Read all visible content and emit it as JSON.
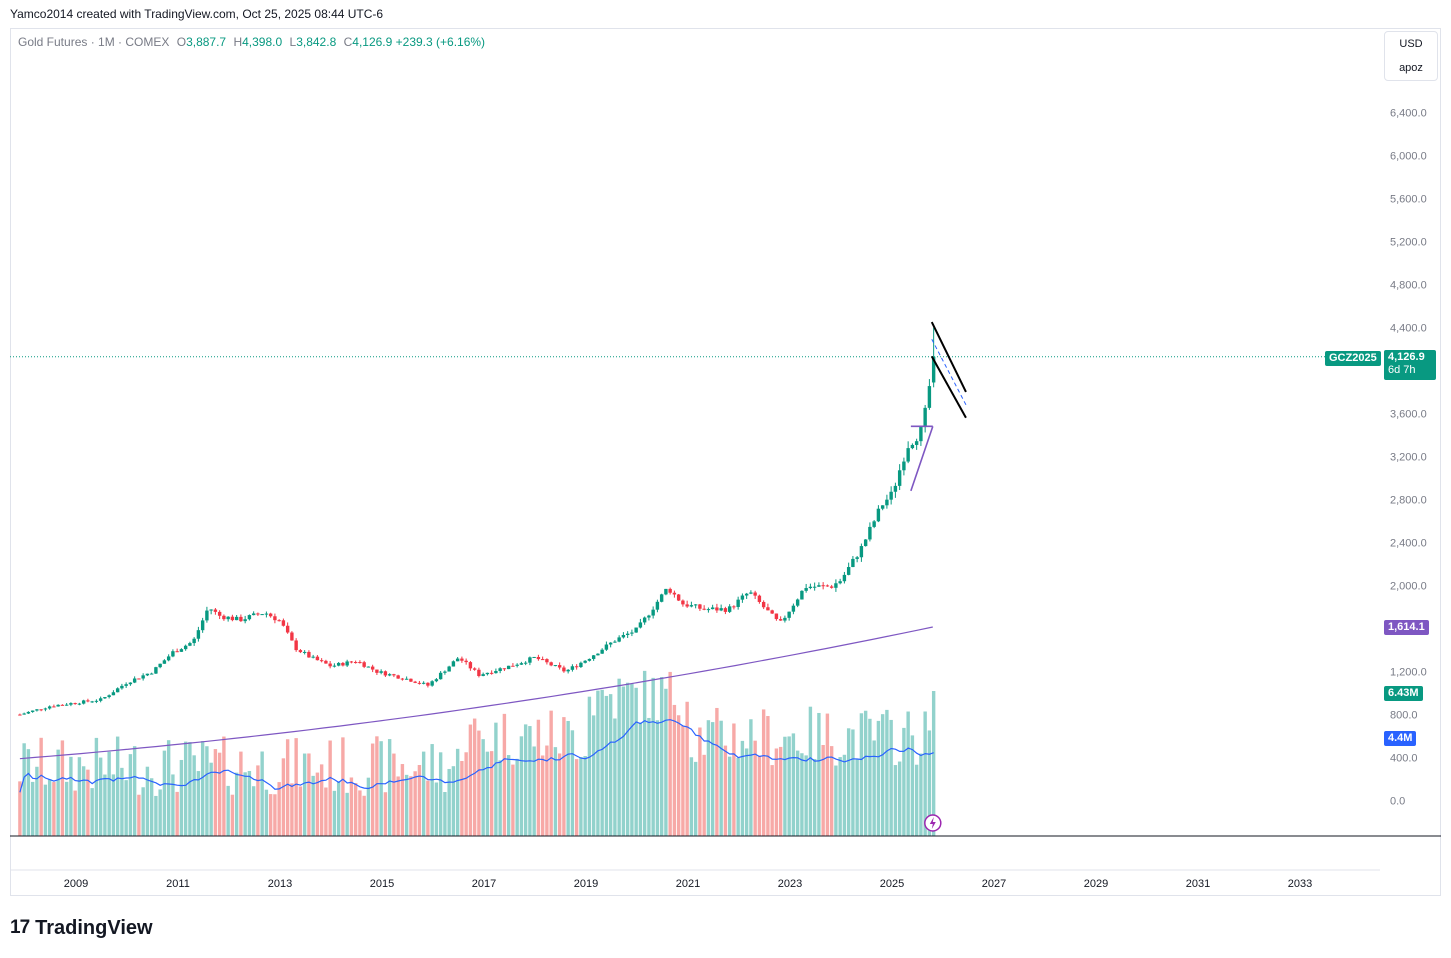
{
  "header": {
    "text": "Yamco2014 created with TradingView.com, Oct 25, 2025 08:44 UTC-6"
  },
  "legend": {
    "symbol": "Gold Futures · 1M · COMEX",
    "o_label": "O",
    "o": "3,887.7",
    "h_label": "H",
    "h": "4,398.0",
    "l_label": "L",
    "l": "3,842.8",
    "c_label": "C",
    "c": "4,126.9",
    "change": "+239.3 (+6.16%)"
  },
  "axis_toggle": {
    "currency": "USD",
    "mode": "apoz"
  },
  "badges": {
    "ticker": "GCZ2025",
    "price": "4,126.9",
    "countdown": "6d 7h",
    "ma": "1,614.1",
    "volume": "6.43M",
    "volume_ma": "4.4M"
  },
  "colors": {
    "up": "#089981",
    "down": "#f23645",
    "vol_up": "#92d2cc",
    "vol_down": "#f7a9a7",
    "ma": "#7e57c2",
    "vol_ma": "#2962ff"
  },
  "footer": {
    "logo_text": "TradingView"
  },
  "chart_data": {
    "type": "candlestick",
    "title": "Gold Futures · 1M · COMEX",
    "y_ticks": [
      "6,400.0",
      "6,000.0",
      "5,600.0",
      "5,200.0",
      "4,800.0",
      "4,400.0",
      "3,600.0",
      "3,200.0",
      "2,800.0",
      "2,400.0",
      "2,000.0",
      "1,200.0",
      "800.0",
      "400.0",
      "0.0"
    ],
    "y_tick_values": [
      6400,
      6000,
      5600,
      5200,
      4800,
      4400,
      3600,
      3200,
      2800,
      2400,
      2000,
      1200,
      800,
      400,
      0
    ],
    "x_ticks": [
      "2009",
      "2011",
      "2013",
      "2015",
      "2017",
      "2019",
      "2021",
      "2023",
      "2025",
      "2027",
      "2029",
      "2031",
      "2033"
    ],
    "x_tick_years": [
      2009,
      2011,
      2013,
      2015,
      2017,
      2019,
      2021,
      2023,
      2025,
      2027,
      2029,
      2031,
      2033
    ],
    "price_path": [
      [
        2007.9,
        800
      ],
      [
        2008.5,
        880
      ],
      [
        2009.0,
        910
      ],
      [
        2009.5,
        940
      ],
      [
        2010.0,
        1100
      ],
      [
        2010.5,
        1200
      ],
      [
        2010.9,
        1380
      ],
      [
        2011.3,
        1480
      ],
      [
        2011.6,
        1800
      ],
      [
        2011.8,
        1720
      ],
      [
        2012.2,
        1680
      ],
      [
        2012.7,
        1750
      ],
      [
        2013.0,
        1670
      ],
      [
        2013.3,
        1420
      ],
      [
        2013.6,
        1330
      ],
      [
        2014.0,
        1250
      ],
      [
        2014.5,
        1300
      ],
      [
        2014.9,
        1200
      ],
      [
        2015.5,
        1130
      ],
      [
        2015.9,
        1070
      ],
      [
        2016.5,
        1330
      ],
      [
        2016.9,
        1170
      ],
      [
        2017.5,
        1250
      ],
      [
        2018.0,
        1330
      ],
      [
        2018.6,
        1200
      ],
      [
        2019.0,
        1310
      ],
      [
        2019.6,
        1500
      ],
      [
        2020.0,
        1590
      ],
      [
        2020.6,
        1980
      ],
      [
        2020.9,
        1830
      ],
      [
        2021.3,
        1780
      ],
      [
        2021.8,
        1780
      ],
      [
        2022.2,
        1940
      ],
      [
        2022.8,
        1640
      ],
      [
        2023.3,
        1990
      ],
      [
        2023.8,
        1990
      ],
      [
        2024.0,
        2050
      ],
      [
        2024.4,
        2350
      ],
      [
        2024.8,
        2750
      ],
      [
        2025.0,
        2850
      ],
      [
        2025.3,
        3300
      ],
      [
        2025.6,
        3450
      ],
      [
        2025.75,
        3900
      ],
      [
        2025.8,
        4126.9
      ]
    ],
    "last": {
      "open": 3887.7,
      "high": 4398.0,
      "low": 3842.8,
      "close": 4126.9
    },
    "moving_average": {
      "value": 1614.1,
      "start": [
        2007.9,
        390
      ],
      "end": [
        2025.8,
        1614.1
      ]
    },
    "volume": {
      "last": "6.43M",
      "ma": "4.4M"
    },
    "drawings": [
      {
        "name": "flag-upper",
        "from": [
          2025.78,
          4450
        ],
        "to": [
          2026.45,
          3800
        ]
      },
      {
        "name": "flag-lower",
        "from": [
          2025.78,
          4130
        ],
        "to": [
          2026.45,
          3560
        ]
      },
      {
        "name": "pennant-top",
        "from": [
          2025.37,
          3480
        ],
        "to": [
          2025.8,
          3480
        ]
      },
      {
        "name": "pennant-bottom",
        "from": [
          2025.37,
          2880
        ],
        "to": [
          2025.8,
          3480
        ]
      }
    ]
  }
}
